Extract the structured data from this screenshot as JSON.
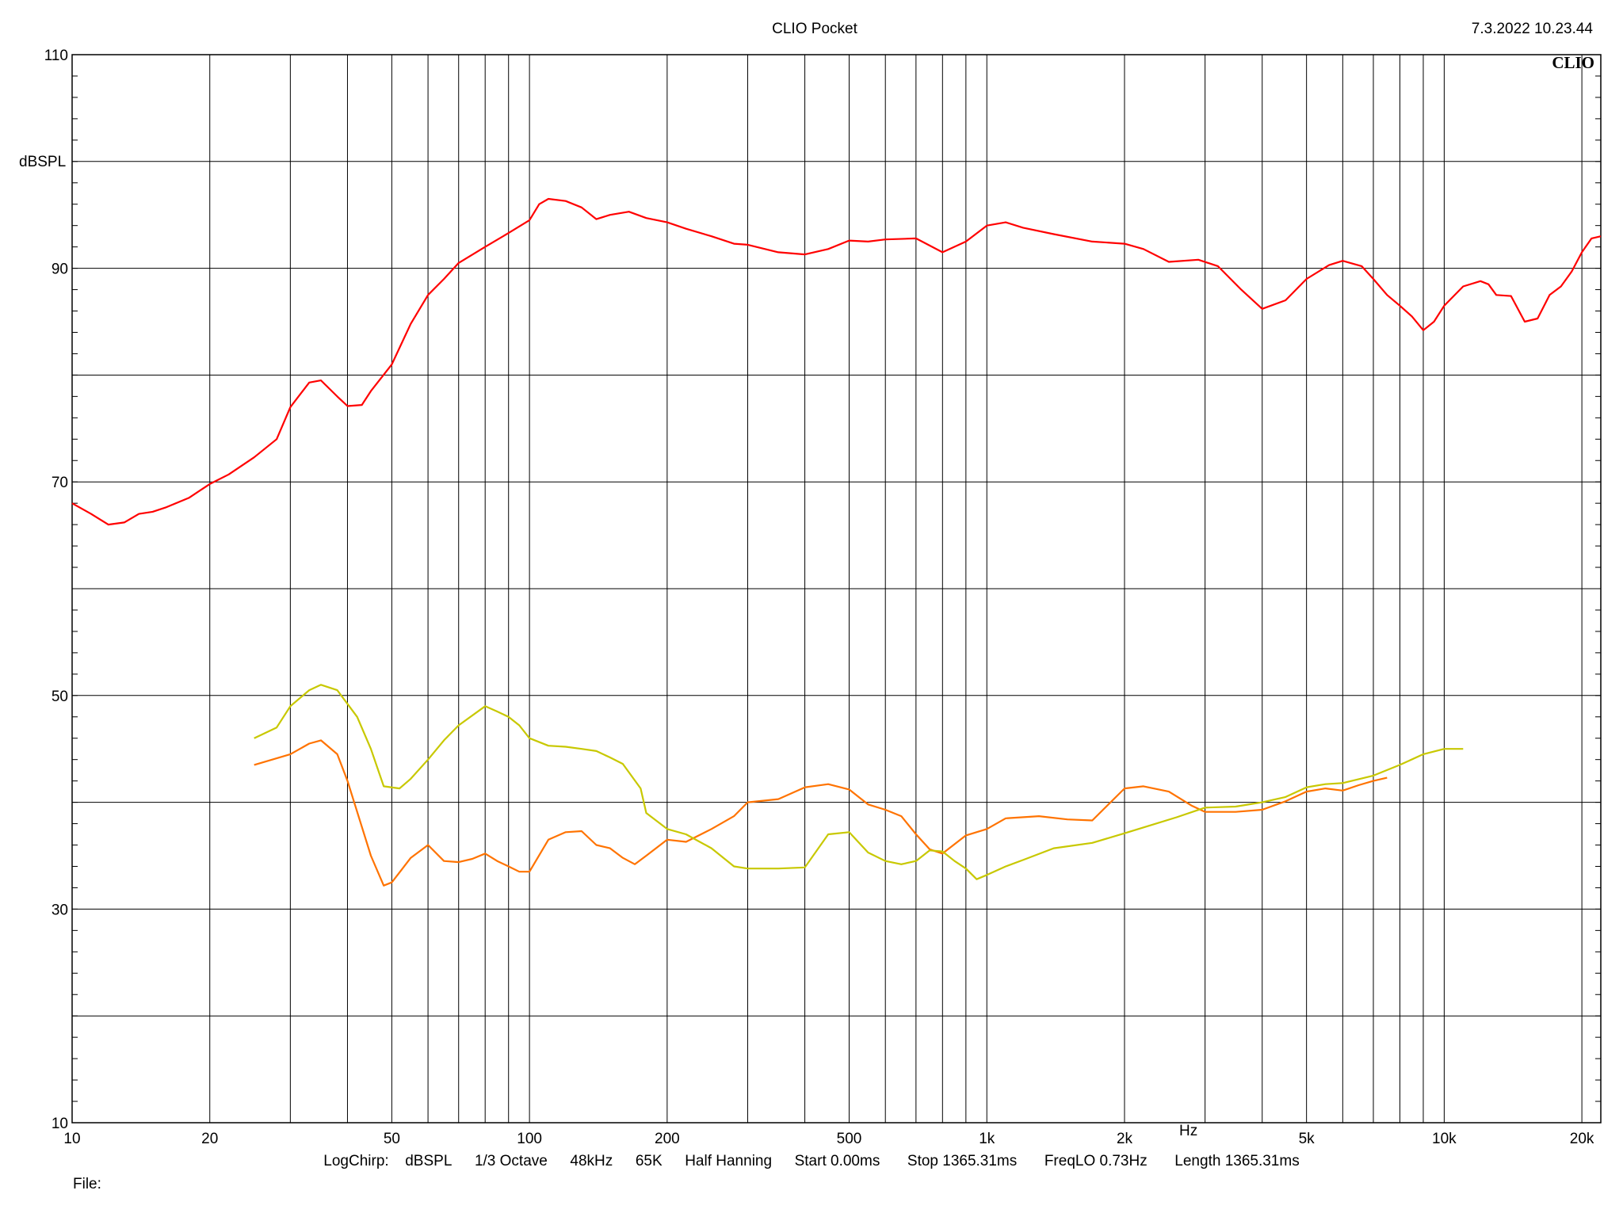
{
  "header": {
    "title": "CLIO Pocket",
    "timestamp": "7.3.2022 10.23.44",
    "logo": "CLIO"
  },
  "footer": {
    "settings": [
      "LogChirp:",
      "dBSPL",
      "1/3 Octave",
      "48kHz",
      "65K",
      "Half Hanning",
      "Start 0.00ms",
      "Stop 1365.31ms",
      "FreqLO 0.73Hz",
      "Length 1365.31ms"
    ],
    "file_label": "File:"
  },
  "colors": {
    "red": "#ff0000",
    "orange": "#ff7300",
    "yellow": "#c8c800",
    "grid": "#000000"
  },
  "chart_data": {
    "type": "line",
    "title": "CLIO Pocket",
    "xlabel": "Hz",
    "ylabel": "dBSPL",
    "xscale": "log",
    "xlim": [
      10,
      22000
    ],
    "ylim": [
      10,
      110
    ],
    "grid": true,
    "x_tick_labels": [
      {
        "v": 10,
        "t": "10"
      },
      {
        "v": 20,
        "t": "20"
      },
      {
        "v": 50,
        "t": "50"
      },
      {
        "v": 100,
        "t": "100"
      },
      {
        "v": 200,
        "t": "200"
      },
      {
        "v": 500,
        "t": "500"
      },
      {
        "v": 1000,
        "t": "1k"
      },
      {
        "v": 2000,
        "t": "2k"
      },
      {
        "v": 5000,
        "t": "5k"
      },
      {
        "v": 10000,
        "t": "10k"
      },
      {
        "v": 20000,
        "t": "20k"
      }
    ],
    "y_tick_labels": [
      {
        "v": 110,
        "t": "110"
      },
      {
        "v": 90,
        "t": "90"
      },
      {
        "v": 70,
        "t": "70"
      },
      {
        "v": 50,
        "t": "50"
      },
      {
        "v": 30,
        "t": "30"
      },
      {
        "v": 10,
        "t": "10"
      }
    ],
    "series": [
      {
        "color": "#ff0000",
        "x": [
          10,
          11,
          12,
          13,
          14,
          15,
          16,
          18,
          20,
          22,
          25,
          28,
          30,
          33,
          35,
          38,
          40,
          43,
          45,
          50,
          55,
          60,
          65,
          70,
          80,
          90,
          100,
          105,
          110,
          120,
          130,
          140,
          150,
          165,
          180,
          200,
          220,
          250,
          280,
          300,
          350,
          400,
          450,
          500,
          550,
          600,
          700,
          800,
          900,
          1000,
          1100,
          1200,
          1400,
          1700,
          2000,
          2200,
          2500,
          2900,
          3200,
          3600,
          4000,
          4500,
          5000,
          5600,
          6000,
          6600,
          7000,
          7500,
          8000,
          8500,
          9000,
          9500,
          10000,
          11000,
          12000,
          12500,
          13000,
          14000,
          15000,
          16000,
          17000,
          18000,
          19000,
          20000,
          21000,
          22000
        ],
        "values": [
          68,
          67,
          66,
          66.2,
          67,
          67.2,
          67.6,
          68.5,
          69.8,
          70.7,
          72.3,
          74,
          77,
          79.3,
          79.5,
          78,
          77.1,
          77.2,
          78.5,
          81,
          84.8,
          87.5,
          89,
          90.5,
          92,
          93.3,
          94.5,
          96,
          96.5,
          96.3,
          95.7,
          94.6,
          95,
          95.3,
          94.7,
          94.3,
          93.7,
          93,
          92.3,
          92.2,
          91.5,
          91.3,
          91.8,
          92.6,
          92.5,
          92.7,
          92.8,
          91.5,
          92.5,
          94,
          94.3,
          93.8,
          93.2,
          92.5,
          92.3,
          91.8,
          90.6,
          90.8,
          90.2,
          88,
          86.2,
          87,
          89,
          90.3,
          90.7,
          90.2,
          89,
          87.5,
          86.5,
          85.5,
          84.2,
          85,
          86.5,
          88.3,
          88.8,
          88.5,
          87.5,
          87.4,
          85,
          85.3,
          87.5,
          88.3,
          89.7,
          91.5,
          92.8,
          93
        ]
      },
      {
        "color": "#ff7300",
        "x": [
          25,
          30,
          33,
          35,
          38,
          40,
          45,
          48,
          50,
          55,
          60,
          65,
          70,
          75,
          80,
          85,
          90,
          95,
          100,
          110,
          120,
          130,
          140,
          150,
          160,
          170,
          180,
          200,
          220,
          250,
          280,
          300,
          350,
          400,
          450,
          500,
          550,
          600,
          650,
          700,
          750,
          800,
          900,
          1000,
          1100,
          1300,
          1500,
          1700,
          2000,
          2200,
          2500,
          2800,
          3000,
          3500,
          4000,
          4500,
          5000,
          5500,
          6000,
          6500,
          7000,
          7500
        ],
        "values": [
          43.5,
          44.5,
          45.5,
          45.8,
          44.5,
          42,
          35,
          32.2,
          32.5,
          34.8,
          36,
          34.5,
          34.4,
          34.7,
          35.2,
          34.5,
          34,
          33.5,
          33.5,
          36.5,
          37.2,
          37.3,
          36,
          35.7,
          34.8,
          34.2,
          35,
          36.5,
          36.3,
          37.5,
          38.7,
          40,
          40.3,
          41.4,
          41.7,
          41.2,
          39.8,
          39.3,
          38.7,
          37,
          35.6,
          35.2,
          36.9,
          37.5,
          38.5,
          38.7,
          38.4,
          38.3,
          41.3,
          41.5,
          41,
          39.7,
          39.1,
          39.1,
          39.3,
          40.1,
          41,
          41.3,
          41.1,
          41.6,
          42,
          42.3
        ]
      },
      {
        "color": "#c8c800",
        "x": [
          25,
          28,
          30,
          33,
          35,
          38,
          42,
          45,
          48,
          52,
          55,
          60,
          65,
          70,
          80,
          85,
          90,
          95,
          100,
          110,
          120,
          130,
          140,
          150,
          160,
          175,
          180,
          200,
          220,
          250,
          280,
          300,
          350,
          400,
          450,
          500,
          550,
          600,
          650,
          700,
          750,
          800,
          850,
          900,
          950,
          1000,
          1100,
          1200,
          1400,
          1700,
          2000,
          2300,
          2600,
          3000,
          3500,
          4000,
          4500,
          5000,
          5500,
          6000,
          7000,
          8000,
          9000,
          10000,
          11000
        ],
        "values": [
          46,
          47,
          49,
          50.5,
          51,
          50.5,
          48,
          45,
          41.5,
          41.3,
          42.2,
          44,
          45.8,
          47.2,
          49,
          48.5,
          48,
          47.2,
          46,
          45.3,
          45.2,
          45,
          44.8,
          44.2,
          43.6,
          41.3,
          39,
          37.5,
          37,
          35.7,
          34,
          33.8,
          33.8,
          33.9,
          37,
          37.2,
          35.3,
          34.5,
          34.2,
          34.5,
          35.5,
          35.4,
          34.5,
          33.8,
          32.8,
          33.2,
          34,
          34.6,
          35.7,
          36.2,
          37.1,
          37.9,
          38.6,
          39.5,
          39.6,
          40,
          40.5,
          41.4,
          41.7,
          41.8,
          42.5,
          43.5,
          44.5,
          45,
          45
        ]
      }
    ]
  }
}
